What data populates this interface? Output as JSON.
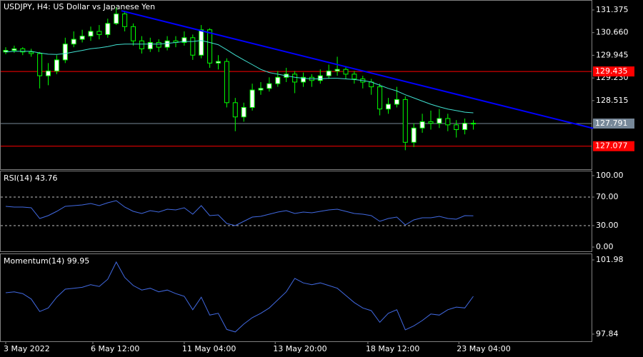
{
  "chart_data": {
    "type": "candlestick",
    "title": "USDJPY, H4:  US Dollar vs Japanese Yen",
    "open": [
      130.05,
      130.1,
      130.15,
      130.05,
      130.0,
      129.3,
      129.45,
      129.8,
      130.3,
      130.45,
      130.55,
      130.7,
      130.6,
      130.95,
      131.25,
      130.85,
      130.4,
      130.15,
      130.35,
      130.2,
      130.4,
      130.35,
      130.5,
      129.95,
      130.75,
      129.7,
      129.75,
      128.45,
      128.0,
      128.3,
      128.85,
      128.9,
      129.05,
      129.25,
      129.35,
      129.1,
      129.25,
      129.15,
      129.3,
      129.45,
      129.5,
      129.35,
      129.2,
      129.1,
      128.95,
      128.25,
      128.4,
      128.55,
      127.2,
      127.65,
      127.85,
      127.8,
      127.95,
      127.75,
      127.6,
      127.8
    ],
    "high": [
      130.2,
      130.25,
      130.2,
      130.15,
      130.05,
      129.7,
      129.95,
      130.5,
      130.7,
      130.75,
      130.85,
      130.9,
      131.1,
      131.45,
      131.35,
      130.95,
      130.55,
      130.5,
      130.45,
      130.55,
      130.55,
      130.7,
      130.6,
      130.9,
      130.8,
      129.95,
      129.85,
      128.6,
      128.45,
      129.05,
      129.1,
      129.25,
      129.45,
      129.55,
      129.45,
      129.4,
      129.35,
      129.5,
      129.65,
      129.9,
      129.6,
      129.45,
      129.3,
      129.2,
      129.05,
      128.6,
      128.95,
      128.65,
      127.8,
      128.1,
      128.2,
      128.25,
      128.1,
      127.9,
      127.95,
      127.9
    ],
    "low": [
      129.98,
      130.02,
      129.95,
      129.9,
      128.9,
      129.0,
      129.35,
      129.7,
      130.2,
      130.35,
      130.4,
      130.45,
      130.5,
      130.9,
      130.7,
      130.25,
      130.0,
      130.05,
      130.05,
      130.1,
      130.2,
      130.25,
      129.8,
      129.85,
      129.55,
      129.5,
      128.3,
      127.55,
      127.85,
      128.2,
      128.7,
      128.8,
      128.95,
      129.1,
      128.75,
      128.95,
      128.95,
      129.05,
      129.2,
      129.3,
      129.2,
      129.05,
      128.9,
      128.7,
      128.05,
      128.1,
      128.3,
      126.95,
      127.05,
      127.5,
      127.6,
      127.65,
      127.55,
      127.35,
      127.45,
      127.6
    ],
    "close": [
      130.1,
      130.15,
      130.05,
      130.0,
      129.3,
      129.45,
      129.8,
      130.3,
      130.45,
      130.55,
      130.7,
      130.6,
      130.95,
      131.25,
      130.85,
      130.4,
      130.15,
      130.35,
      130.2,
      130.4,
      130.35,
      130.5,
      129.95,
      130.75,
      129.7,
      129.75,
      128.45,
      128.0,
      128.3,
      128.85,
      128.9,
      129.05,
      129.25,
      129.35,
      129.1,
      129.25,
      129.15,
      129.3,
      129.45,
      129.5,
      129.35,
      129.2,
      129.1,
      128.95,
      128.25,
      128.4,
      128.55,
      127.2,
      127.65,
      127.85,
      127.8,
      127.95,
      127.75,
      127.6,
      127.8,
      127.79
    ],
    "up_color": "#ffffff",
    "down_color": "#000000",
    "wick_color": "#00ff00",
    "ma": {
      "color": "#40e0d0",
      "values": [
        130.05,
        130.07,
        130.07,
        130.07,
        130.02,
        129.98,
        129.97,
        130.0,
        130.05,
        130.1,
        130.15,
        130.18,
        130.22,
        130.28,
        130.3,
        130.3,
        130.3,
        130.3,
        130.3,
        130.32,
        130.35,
        130.38,
        130.38,
        130.41,
        130.35,
        130.28,
        130.12,
        129.95,
        129.8,
        129.65,
        129.5,
        129.4,
        129.35,
        129.3,
        129.25,
        129.22,
        129.2,
        129.2,
        129.22,
        129.22,
        129.2,
        129.18,
        129.15,
        129.1,
        129.0,
        128.9,
        128.82,
        128.7,
        128.6,
        128.5,
        128.4,
        128.32,
        128.25,
        128.2,
        128.15,
        128.13
      ]
    },
    "ylim": [
      126.35,
      131.69
    ],
    "yticks": [
      {
        "value": 131.375,
        "label": "131.375"
      },
      {
        "value": 130.66,
        "label": "130.660"
      },
      {
        "value": 129.945,
        "label": "129.945"
      },
      {
        "value": 129.23,
        "label": "129.230"
      },
      {
        "value": 128.515,
        "label": "128.515"
      }
    ],
    "levels": [
      {
        "value": 129.435,
        "label": "129.435",
        "color": "#ff0000"
      },
      {
        "value": 127.077,
        "label": "127.077",
        "color": "#ff0000"
      },
      {
        "value": 127.791,
        "label": "127.791",
        "color": "#778899"
      }
    ],
    "trendline": {
      "x": [
        13.6,
        69.1
      ],
      "y": [
        131.35,
        127.64
      ],
      "color": "#0000ff"
    },
    "xticks": [
      {
        "value": 0,
        "label": "3 May 2022"
      },
      {
        "value": 10.25,
        "label": "6 May 12:00"
      },
      {
        "value": 21,
        "label": "11 May 04:00"
      },
      {
        "value": 31.7,
        "label": "13 May 20:00"
      },
      {
        "value": 42.6,
        "label": "18 May 12:00"
      },
      {
        "value": 53.3,
        "label": "23 May 04:00"
      }
    ],
    "rsi": {
      "title": "RSI(14) 43.76",
      "color": "#4169e1",
      "ylim": [
        -6,
        106
      ],
      "yticks": [
        {
          "value": 100,
          "label": "100.00"
        },
        {
          "value": 70,
          "label": "70.00"
        },
        {
          "value": 30,
          "label": "30.00"
        },
        {
          "value": 0,
          "label": "0.00"
        }
      ],
      "levels": [
        70,
        30
      ],
      "values": [
        57,
        56,
        56,
        55,
        40,
        44,
        50,
        57,
        58,
        59,
        61,
        58,
        62,
        65,
        56,
        50,
        47,
        51,
        49,
        53,
        52,
        55,
        46,
        58,
        44,
        45,
        33,
        30,
        36,
        42,
        43,
        46,
        49,
        51,
        47,
        49,
        48,
        50,
        52,
        53,
        50,
        47,
        46,
        44,
        36,
        40,
        42,
        31,
        38,
        41,
        41,
        43,
        40,
        39,
        44,
        43.76
      ]
    },
    "momentum": {
      "title": "Momentum(14) 99.95",
      "color": "#4169e1",
      "ylim": [
        97.44,
        102.3
      ],
      "yticks": [
        101.98,
        97.84
      ],
      "values": [
        100.15,
        100.2,
        100.1,
        99.8,
        99.1,
        99.3,
        99.9,
        100.35,
        100.4,
        100.45,
        100.6,
        100.5,
        100.9,
        101.86,
        101.0,
        100.55,
        100.3,
        100.4,
        100.2,
        100.3,
        100.1,
        99.95,
        99.2,
        99.9,
        98.9,
        99.0,
        98.1,
        97.96,
        98.4,
        98.76,
        99.0,
        99.3,
        99.75,
        100.2,
        100.95,
        100.7,
        100.6,
        100.7,
        100.55,
        100.4,
        100.0,
        99.6,
        99.3,
        99.15,
        98.5,
        99.0,
        99.2,
        98.08,
        98.3,
        98.6,
        98.96,
        98.9,
        99.2,
        99.35,
        99.3,
        99.95
      ]
    }
  }
}
